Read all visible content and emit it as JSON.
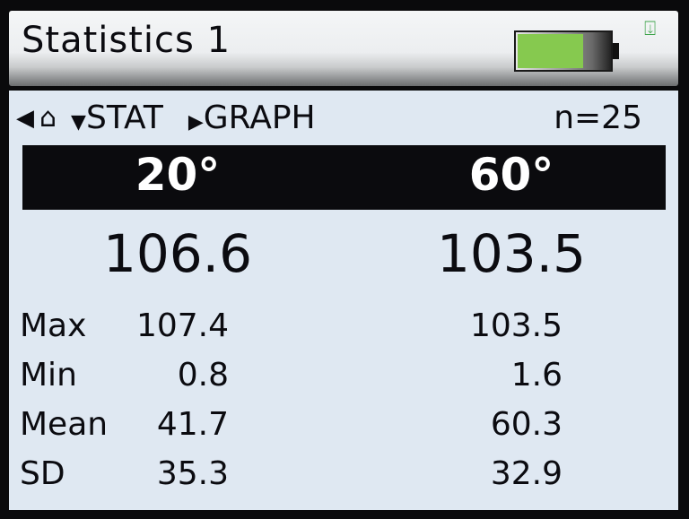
{
  "header": {
    "title": "Statistics 1",
    "battery_level_percent": 70,
    "battery_color": "#86c94f",
    "icons": [
      "battery-icon",
      "usb-connection-icon"
    ]
  },
  "nav": {
    "back_icon": "triangle-left-icon",
    "home_icon": "home-icon",
    "stat_label": "STAT",
    "graph_label": "GRAPH",
    "count": "n=25"
  },
  "angles": [
    "20°",
    "60°"
  ],
  "current_values": [
    "106.6",
    "103.5"
  ],
  "stats": [
    {
      "label": "Max",
      "v20": "107.4",
      "v60": "103.5"
    },
    {
      "label": "Min",
      "v20": "0.8",
      "v60": "1.6"
    },
    {
      "label": "Mean",
      "v20": "41.7",
      "v60": "60.3"
    },
    {
      "label": "SD",
      "v20": "35.3",
      "v60": "32.9"
    }
  ]
}
